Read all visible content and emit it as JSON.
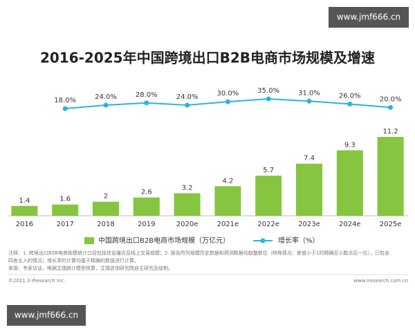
{
  "chart_data": {
    "type": "combo",
    "title": "2016-2025年中国跨境出口B2B电商市场规模及增速",
    "categories": [
      "2016",
      "2017",
      "2018",
      "2019",
      "2020e",
      "2021e",
      "2022e",
      "2023e",
      "2024e",
      "2025e"
    ],
    "series": [
      {
        "name": "中国跨境出口B2B电商市场规模（万亿元）",
        "type": "bar",
        "color": "#86c540",
        "values": [
          1.4,
          1.6,
          2.0,
          2.6,
          3.2,
          4.2,
          5.7,
          7.4,
          9.3,
          11.2
        ]
      },
      {
        "name": "增长率（%）",
        "type": "line",
        "color": "#2ab3e0",
        "axis": "y2",
        "values": [
          null,
          18,
          24,
          28,
          24,
          30,
          35,
          31,
          26,
          20
        ],
        "value_labels": [
          null,
          "18.0%",
          "24.0%",
          "28.0%",
          "24.0%",
          "30.0%",
          "35.0%",
          "31.0%",
          "26.0%",
          "20.0%"
        ]
      }
    ],
    "notes": [
      "注释：1. 跨境出口B2B电商规模统计口径包括信息撮合及线上交易规模；2. 报告所列规模历史数据和预测数据均取整数位（特殊情况：差值小于1时精确至小数点后一位），已包含",
      "四舍五入的情况；增长率的计算均基于精确的数值进行计算。",
      "来源：专家访谈，根据艾瑞统计模型核算，艾瑞咨询研究院自主研究及绘制。"
    ],
    "copyright": "©2021.3 iResearch Inc.",
    "website": "www.iresearch.com.cn",
    "watermarks": [
      "www.jmf666.cn",
      "www.jmf666.cn"
    ]
  }
}
